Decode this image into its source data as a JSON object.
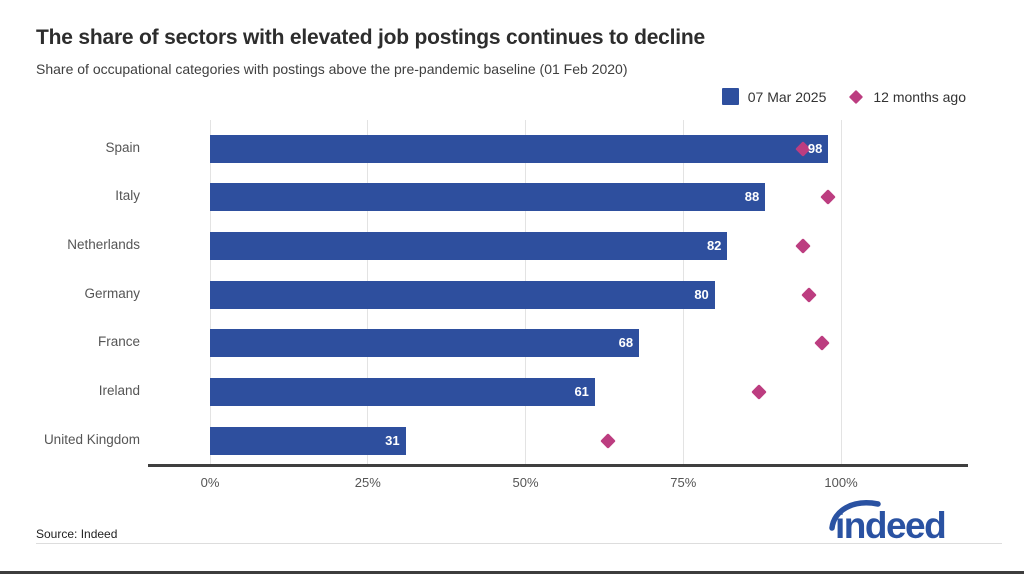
{
  "header": {
    "title": "The share of sectors with elevated job postings continues to decline",
    "subtitle": "Share of occupational categories with postings above the pre-pandemic baseline (01 Feb 2020)"
  },
  "legend": [
    {
      "label": "07 Mar 2025",
      "marker": "square",
      "color": "#2e4f9e"
    },
    {
      "label": "12 months ago",
      "marker": "diamond",
      "color": "#bc3d80"
    }
  ],
  "chart_data": {
    "type": "bar",
    "orientation": "horizontal",
    "title": "The share of sectors with elevated job postings continues to decline",
    "subtitle": "Share of occupational categories with postings above the pre-pandemic baseline (01 Feb 2020)",
    "categories": [
      "Spain",
      "Italy",
      "Netherlands",
      "Germany",
      "France",
      "Ireland",
      "United Kingdom"
    ],
    "series": [
      {
        "name": "07 Mar 2025",
        "type": "bar",
        "color": "#2e4f9e",
        "values": [
          98,
          88,
          82,
          80,
          68,
          61,
          31
        ]
      },
      {
        "name": "12 months ago",
        "type": "scatter",
        "marker": "diamond",
        "color": "#bc3d80",
        "values": [
          94,
          98,
          94,
          95,
          97,
          87,
          63
        ]
      }
    ],
    "xlabel": "",
    "ylabel": "",
    "x_ticks": [
      {
        "value": 0,
        "label": "0%"
      },
      {
        "value": 25,
        "label": "25%"
      },
      {
        "value": 50,
        "label": "50%"
      },
      {
        "value": 75,
        "label": "75%"
      },
      {
        "value": 100,
        "label": "100%"
      }
    ],
    "xlim": [
      0,
      120
    ],
    "grid": "vertical",
    "legend_position": "top-right",
    "value_labels": "inside-end, white"
  },
  "colors": {
    "bar": "#2e4f9e",
    "diamond": "#bc3d80",
    "grid": "#e3e3e3",
    "axis": "#3f3f3f",
    "tick_text": "#555555",
    "category_text": "#555555",
    "logo": "#2a52a2"
  },
  "footer": {
    "source": "Source: Indeed",
    "logo_text": "indeed"
  }
}
